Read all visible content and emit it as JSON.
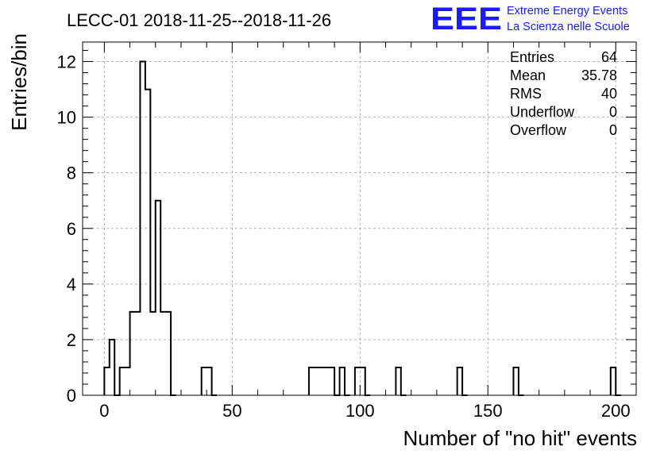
{
  "chart_data": {
    "type": "histogram",
    "title": "LECC-01 2018-11-25--2018-11-26",
    "xlabel": "Number of \"no hit\" events",
    "ylabel": "Entries/bin",
    "xlim": [
      -8.5,
      208
    ],
    "ylim": [
      0,
      12.7
    ],
    "bin_width": 2,
    "grid": true,
    "x_ticks": [
      0,
      50,
      100,
      150,
      200
    ],
    "y_ticks": [
      0,
      2,
      4,
      6,
      8,
      10,
      12
    ],
    "bins": [
      {
        "x": 0,
        "count": 1
      },
      {
        "x": 2,
        "count": 2
      },
      {
        "x": 4,
        "count": 0
      },
      {
        "x": 6,
        "count": 1
      },
      {
        "x": 8,
        "count": 1
      },
      {
        "x": 10,
        "count": 3
      },
      {
        "x": 12,
        "count": 3
      },
      {
        "x": 14,
        "count": 12
      },
      {
        "x": 16,
        "count": 11
      },
      {
        "x": 18,
        "count": 3
      },
      {
        "x": 20,
        "count": 7
      },
      {
        "x": 22,
        "count": 3
      },
      {
        "x": 24,
        "count": 3
      },
      {
        "x": 26,
        "count": 0
      },
      {
        "x": 38,
        "count": 1
      },
      {
        "x": 40,
        "count": 1
      },
      {
        "x": 42,
        "count": 0
      },
      {
        "x": 80,
        "count": 1
      },
      {
        "x": 82,
        "count": 1
      },
      {
        "x": 84,
        "count": 1
      },
      {
        "x": 86,
        "count": 1
      },
      {
        "x": 88,
        "count": 1
      },
      {
        "x": 90,
        "count": 0
      },
      {
        "x": 92,
        "count": 1
      },
      {
        "x": 94,
        "count": 0
      },
      {
        "x": 98,
        "count": 1
      },
      {
        "x": 100,
        "count": 1
      },
      {
        "x": 102,
        "count": 0
      },
      {
        "x": 114,
        "count": 1
      },
      {
        "x": 116,
        "count": 0
      },
      {
        "x": 138,
        "count": 1
      },
      {
        "x": 140,
        "count": 0
      },
      {
        "x": 160,
        "count": 1
      },
      {
        "x": 162,
        "count": 0
      },
      {
        "x": 198,
        "count": 1
      },
      {
        "x": 200,
        "count": 0
      }
    ],
    "stats": [
      {
        "label": "Entries",
        "value": "64"
      },
      {
        "label": "Mean",
        "value": "35.78"
      },
      {
        "label": "RMS",
        "value": "40"
      },
      {
        "label": "Underflow",
        "value": "0"
      },
      {
        "label": "Overflow",
        "value": "0"
      }
    ]
  },
  "logo": {
    "text": "EEE",
    "line1": "Extreme Energy Events",
    "line2": "La Scienza nelle Scuole",
    "color": "#1a1aff"
  }
}
